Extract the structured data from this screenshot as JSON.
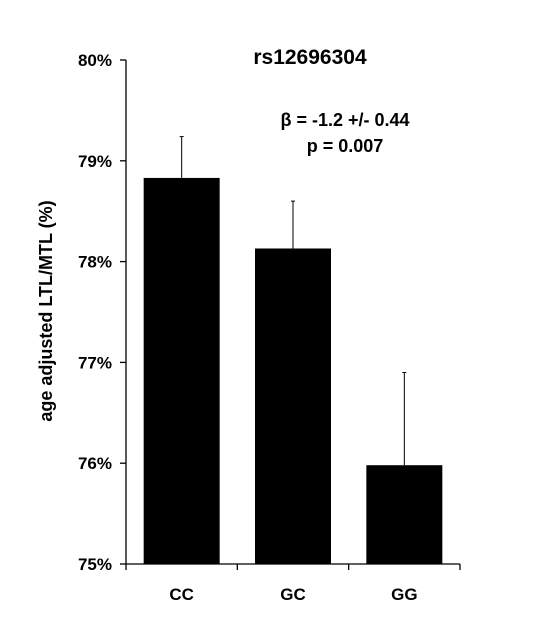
{
  "chart_data": {
    "type": "bar",
    "title": "rs12696304",
    "xlabel": "",
    "ylabel": "age adjusted LTL/MTL (%)",
    "categories": [
      "CC",
      "GC",
      "GG"
    ],
    "values": [
      78.83,
      78.13,
      75.98
    ],
    "error_upper": [
      0.41,
      0.47,
      0.92
    ],
    "ylim": [
      75,
      80
    ],
    "yticks": [
      75,
      76,
      77,
      78,
      79,
      80
    ],
    "ytick_labels": [
      "75%",
      "76%",
      "77%",
      "78%",
      "79%",
      "80%"
    ],
    "annotations": [
      "β = -1.2 +/- 0.44",
      "p = 0.007"
    ],
    "colors": {
      "bar": "#000000"
    },
    "grid": false,
    "legend": "none"
  }
}
